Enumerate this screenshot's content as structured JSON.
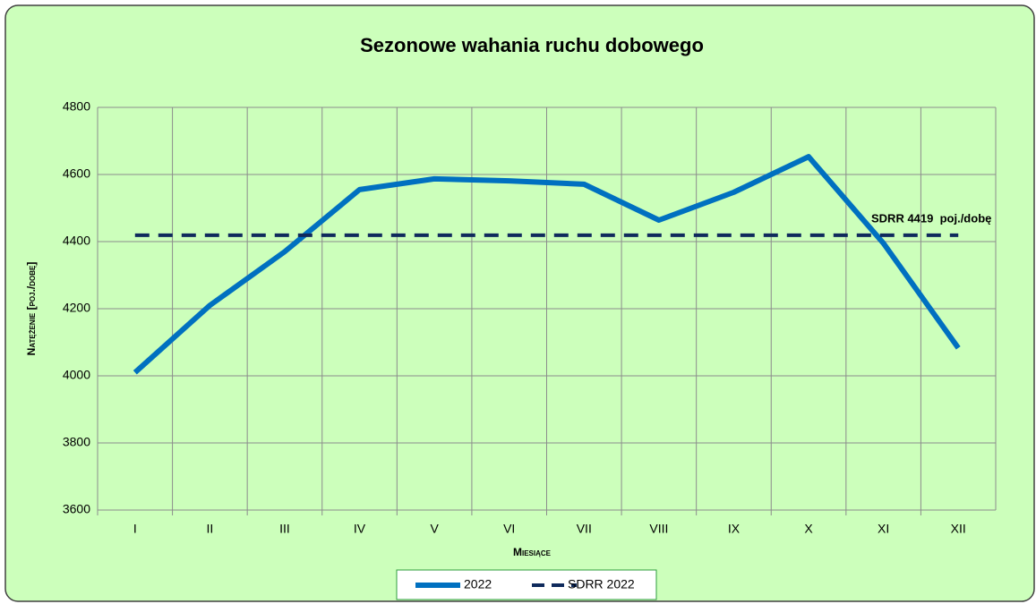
{
  "chart_data": {
    "type": "line",
    "title": "Sezonowe wahania ruchu dobowego",
    "x_label": "Miesiące",
    "y_label": "Natężenie [poj./dobę]",
    "categories": [
      "I",
      "II",
      "III",
      "IV",
      "V",
      "VI",
      "VII",
      "VIII",
      "IX",
      "X",
      "XI",
      "XII"
    ],
    "series": [
      {
        "name": "2022",
        "color": "#0070c0",
        "style": "solid",
        "values": [
          4010,
          4210,
          4370,
          4555,
          4587,
          4581,
          4571,
          4464,
          4547,
          4653,
          4395,
          4083
        ]
      },
      {
        "name": "SDRR 2022",
        "color": "#0f2a5c",
        "style": "dashed",
        "values": [
          4419,
          4419,
          4419,
          4419,
          4419,
          4419,
          4419,
          4419,
          4419,
          4419,
          4419,
          4419
        ]
      }
    ],
    "annotation": "SDRR 4419  poj./dobę",
    "ylim": [
      3600,
      4800
    ],
    "yticks": [
      3600,
      3800,
      4000,
      4200,
      4400,
      4600,
      4800
    ],
    "grid": true,
    "legend": "bottom"
  }
}
